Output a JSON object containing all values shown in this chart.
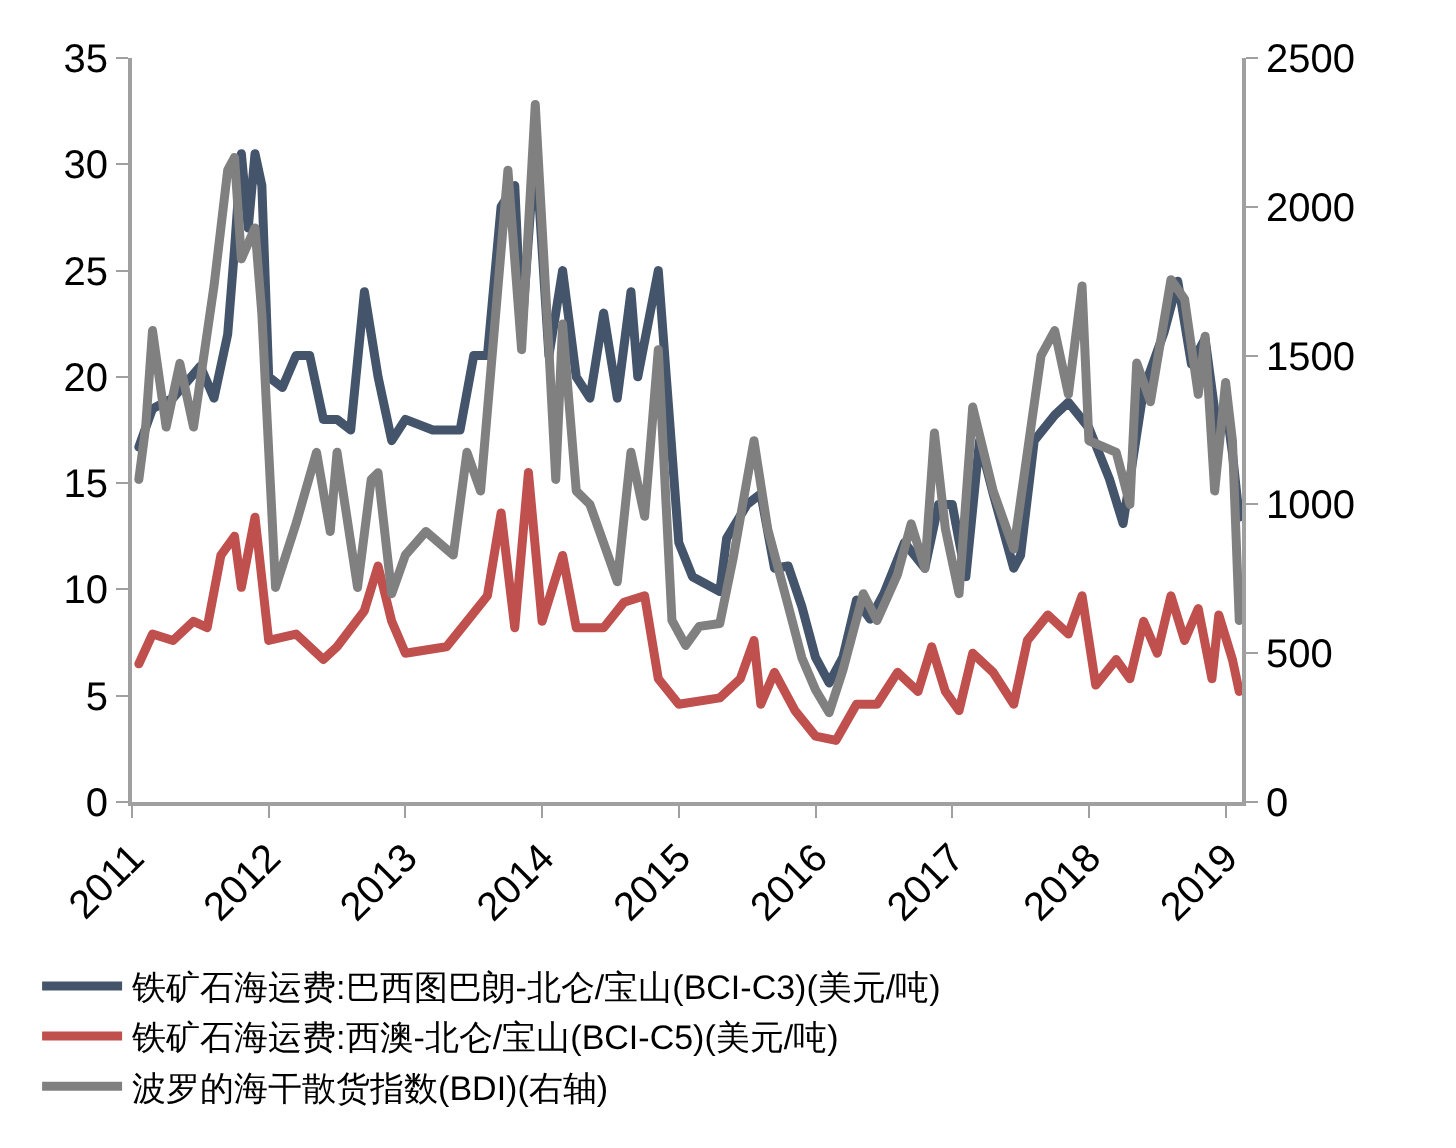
{
  "chart_data": {
    "type": "line",
    "legend": "bottom",
    "marker": "none",
    "line_style": "solid",
    "xlim": [
      2011,
      2019.12
    ],
    "xticks": [
      2011,
      2012,
      2013,
      2014,
      2015,
      2016,
      2017,
      2018,
      2019
    ],
    "ylim": [
      0,
      35
    ],
    "yticks": [
      0,
      5,
      10,
      15,
      20,
      25,
      30,
      35
    ],
    "y2lim": [
      0,
      2500
    ],
    "y2ticks": [
      0,
      500,
      1000,
      1500,
      2000,
      2500
    ],
    "series": [
      {
        "name": "铁矿石海运费:巴西图巴朗-北仑/宝山(BCI-C3)(美元/吨)",
        "color": "#44546a",
        "x": [
          2011.05,
          2011.15,
          2011.3,
          2011.5,
          2011.6,
          2011.7,
          2011.75,
          2011.8,
          2011.85,
          2011.9,
          2011.95,
          2012.0,
          2012.1,
          2012.2,
          2012.3,
          2012.4,
          2012.5,
          2012.6,
          2012.7,
          2012.8,
          2012.9,
          2013.0,
          2013.2,
          2013.4,
          2013.5,
          2013.6,
          2013.7,
          2013.8,
          2013.85,
          2013.95,
          2014.05,
          2014.15,
          2014.25,
          2014.35,
          2014.45,
          2014.55,
          2014.65,
          2014.7,
          2014.85,
          2015.0,
          2015.1,
          2015.3,
          2015.35,
          2015.5,
          2015.6,
          2015.7,
          2015.8,
          2015.9,
          2016.0,
          2016.1,
          2016.2,
          2016.3,
          2016.4,
          2016.5,
          2016.65,
          2016.8,
          2016.9,
          2017.0,
          2017.1,
          2017.2,
          2017.3,
          2017.45,
          2017.5,
          2017.6,
          2017.75,
          2017.85,
          2018.0,
          2018.15,
          2018.25,
          2018.4,
          2018.55,
          2018.65,
          2018.75,
          2018.85,
          2018.95,
          2019.0,
          2019.05,
          2019.1
        ],
        "values": [
          16.7,
          18.5,
          19,
          20.5,
          19,
          22,
          26,
          30.5,
          27,
          30.5,
          29,
          20,
          19.5,
          21,
          21,
          18,
          18,
          17.5,
          24,
          20,
          17,
          18,
          17.5,
          17.5,
          21,
          21,
          28,
          29,
          22,
          31,
          21,
          25,
          20,
          19,
          23,
          19,
          24,
          20,
          25,
          12.2,
          10.6,
          9.9,
          12.4,
          14,
          14.5,
          11,
          11.1,
          9.2,
          6.8,
          5.6,
          6.8,
          9.5,
          8.6,
          9.8,
          12.2,
          11,
          14,
          14,
          10.6,
          17,
          14.5,
          11,
          11.6,
          17,
          18.2,
          18.8,
          17.6,
          15.2,
          13.1,
          19.4,
          22.1,
          24.5,
          20.6,
          21.8,
          17,
          18.8,
          16.4,
          13.4
        ]
      },
      {
        "name": "铁矿石海运费:西澳-北仑/宝山(BCI-C5)(美元/吨)",
        "color": "#c0504d",
        "x": [
          2011.05,
          2011.15,
          2011.3,
          2011.45,
          2011.55,
          2011.65,
          2011.75,
          2011.8,
          2011.9,
          2012.0,
          2012.2,
          2012.4,
          2012.5,
          2012.7,
          2012.8,
          2012.9,
          2013.0,
          2013.3,
          2013.45,
          2013.6,
          2013.7,
          2013.8,
          2013.9,
          2014.0,
          2014.15,
          2014.25,
          2014.45,
          2014.6,
          2014.75,
          2014.85,
          2015.0,
          2015.3,
          2015.45,
          2015.55,
          2015.6,
          2015.7,
          2015.85,
          2016.0,
          2016.15,
          2016.3,
          2016.45,
          2016.6,
          2016.75,
          2016.85,
          2016.95,
          2017.05,
          2017.15,
          2017.3,
          2017.45,
          2017.55,
          2017.7,
          2017.85,
          2017.95,
          2018.05,
          2018.2,
          2018.3,
          2018.4,
          2018.5,
          2018.6,
          2018.7,
          2018.8,
          2018.9,
          2018.95,
          2019.05,
          2019.1
        ],
        "values": [
          6.5,
          7.9,
          7.6,
          8.5,
          8.2,
          11.6,
          12.5,
          10.1,
          13.4,
          7.6,
          7.9,
          6.7,
          7.3,
          9,
          11.1,
          8.5,
          7,
          7.3,
          8.5,
          9.7,
          13.6,
          8.2,
          15.5,
          8.5,
          11.6,
          8.2,
          8.2,
          9.4,
          9.7,
          5.8,
          4.6,
          4.9,
          5.8,
          7.6,
          4.6,
          6.1,
          4.3,
          3.1,
          2.9,
          4.6,
          4.6,
          6.1,
          5.2,
          7.3,
          5.2,
          4.3,
          7,
          6.1,
          4.6,
          7.6,
          8.8,
          7.9,
          9.7,
          5.5,
          6.7,
          5.8,
          8.5,
          7,
          9.7,
          7.6,
          9.1,
          5.8,
          8.8,
          6.7,
          5.2
        ]
      },
      {
        "name": "波罗的海干散货指数(BDI)(右轴)",
        "color": "#808080",
        "axis": "y2",
        "x": [
          2011.05,
          2011.1,
          2011.15,
          2011.25,
          2011.35,
          2011.45,
          2011.6,
          2011.7,
          2011.75,
          2011.8,
          2011.9,
          2011.95,
          2012.05,
          2012.2,
          2012.35,
          2012.45,
          2012.5,
          2012.65,
          2012.75,
          2012.8,
          2012.9,
          2013.0,
          2013.15,
          2013.35,
          2013.45,
          2013.55,
          2013.65,
          2013.75,
          2013.85,
          2013.95,
          2014.05,
          2014.1,
          2014.15,
          2014.25,
          2014.35,
          2014.45,
          2014.55,
          2014.65,
          2014.75,
          2014.85,
          2014.95,
          2015.05,
          2015.15,
          2015.3,
          2015.4,
          2015.55,
          2015.65,
          2015.8,
          2015.9,
          2016.0,
          2016.1,
          2016.2,
          2016.35,
          2016.45,
          2016.6,
          2016.7,
          2016.8,
          2016.87,
          2016.95,
          2017.05,
          2017.15,
          2017.3,
          2017.45,
          2017.55,
          2017.65,
          2017.75,
          2017.85,
          2017.95,
          2018.0,
          2018.1,
          2018.2,
          2018.3,
          2018.35,
          2018.45,
          2018.6,
          2018.7,
          2018.8,
          2018.85,
          2018.92,
          2019.0,
          2019.05,
          2019.1
        ],
        "values": [
          1084,
          1260,
          1584,
          1260,
          1474,
          1260,
          1734,
          2123,
          2166,
          1825,
          1929,
          1640,
          721,
          935,
          1175,
          909,
          1175,
          721,
          1084,
          1106,
          700,
          830,
          909,
          830,
          1175,
          1045,
          1584,
          2123,
          1520,
          2344,
          1520,
          1084,
          1606,
          1045,
          1000,
          870,
          740,
          1175,
          960,
          1520,
          610,
          526,
          590,
          600,
          825,
          1214,
          918,
          660,
          485,
          377,
          300,
          442,
          700,
          610,
          765,
          935,
          785,
          1240,
          918,
          700,
          1327,
          1045,
          850,
          1175,
          1500,
          1584,
          1370,
          1734,
          1214,
          1195,
          1175,
          1000,
          1475,
          1345,
          1755,
          1690,
          1370,
          1565,
          1045,
          1410,
          1214,
          610
        ]
      }
    ]
  }
}
